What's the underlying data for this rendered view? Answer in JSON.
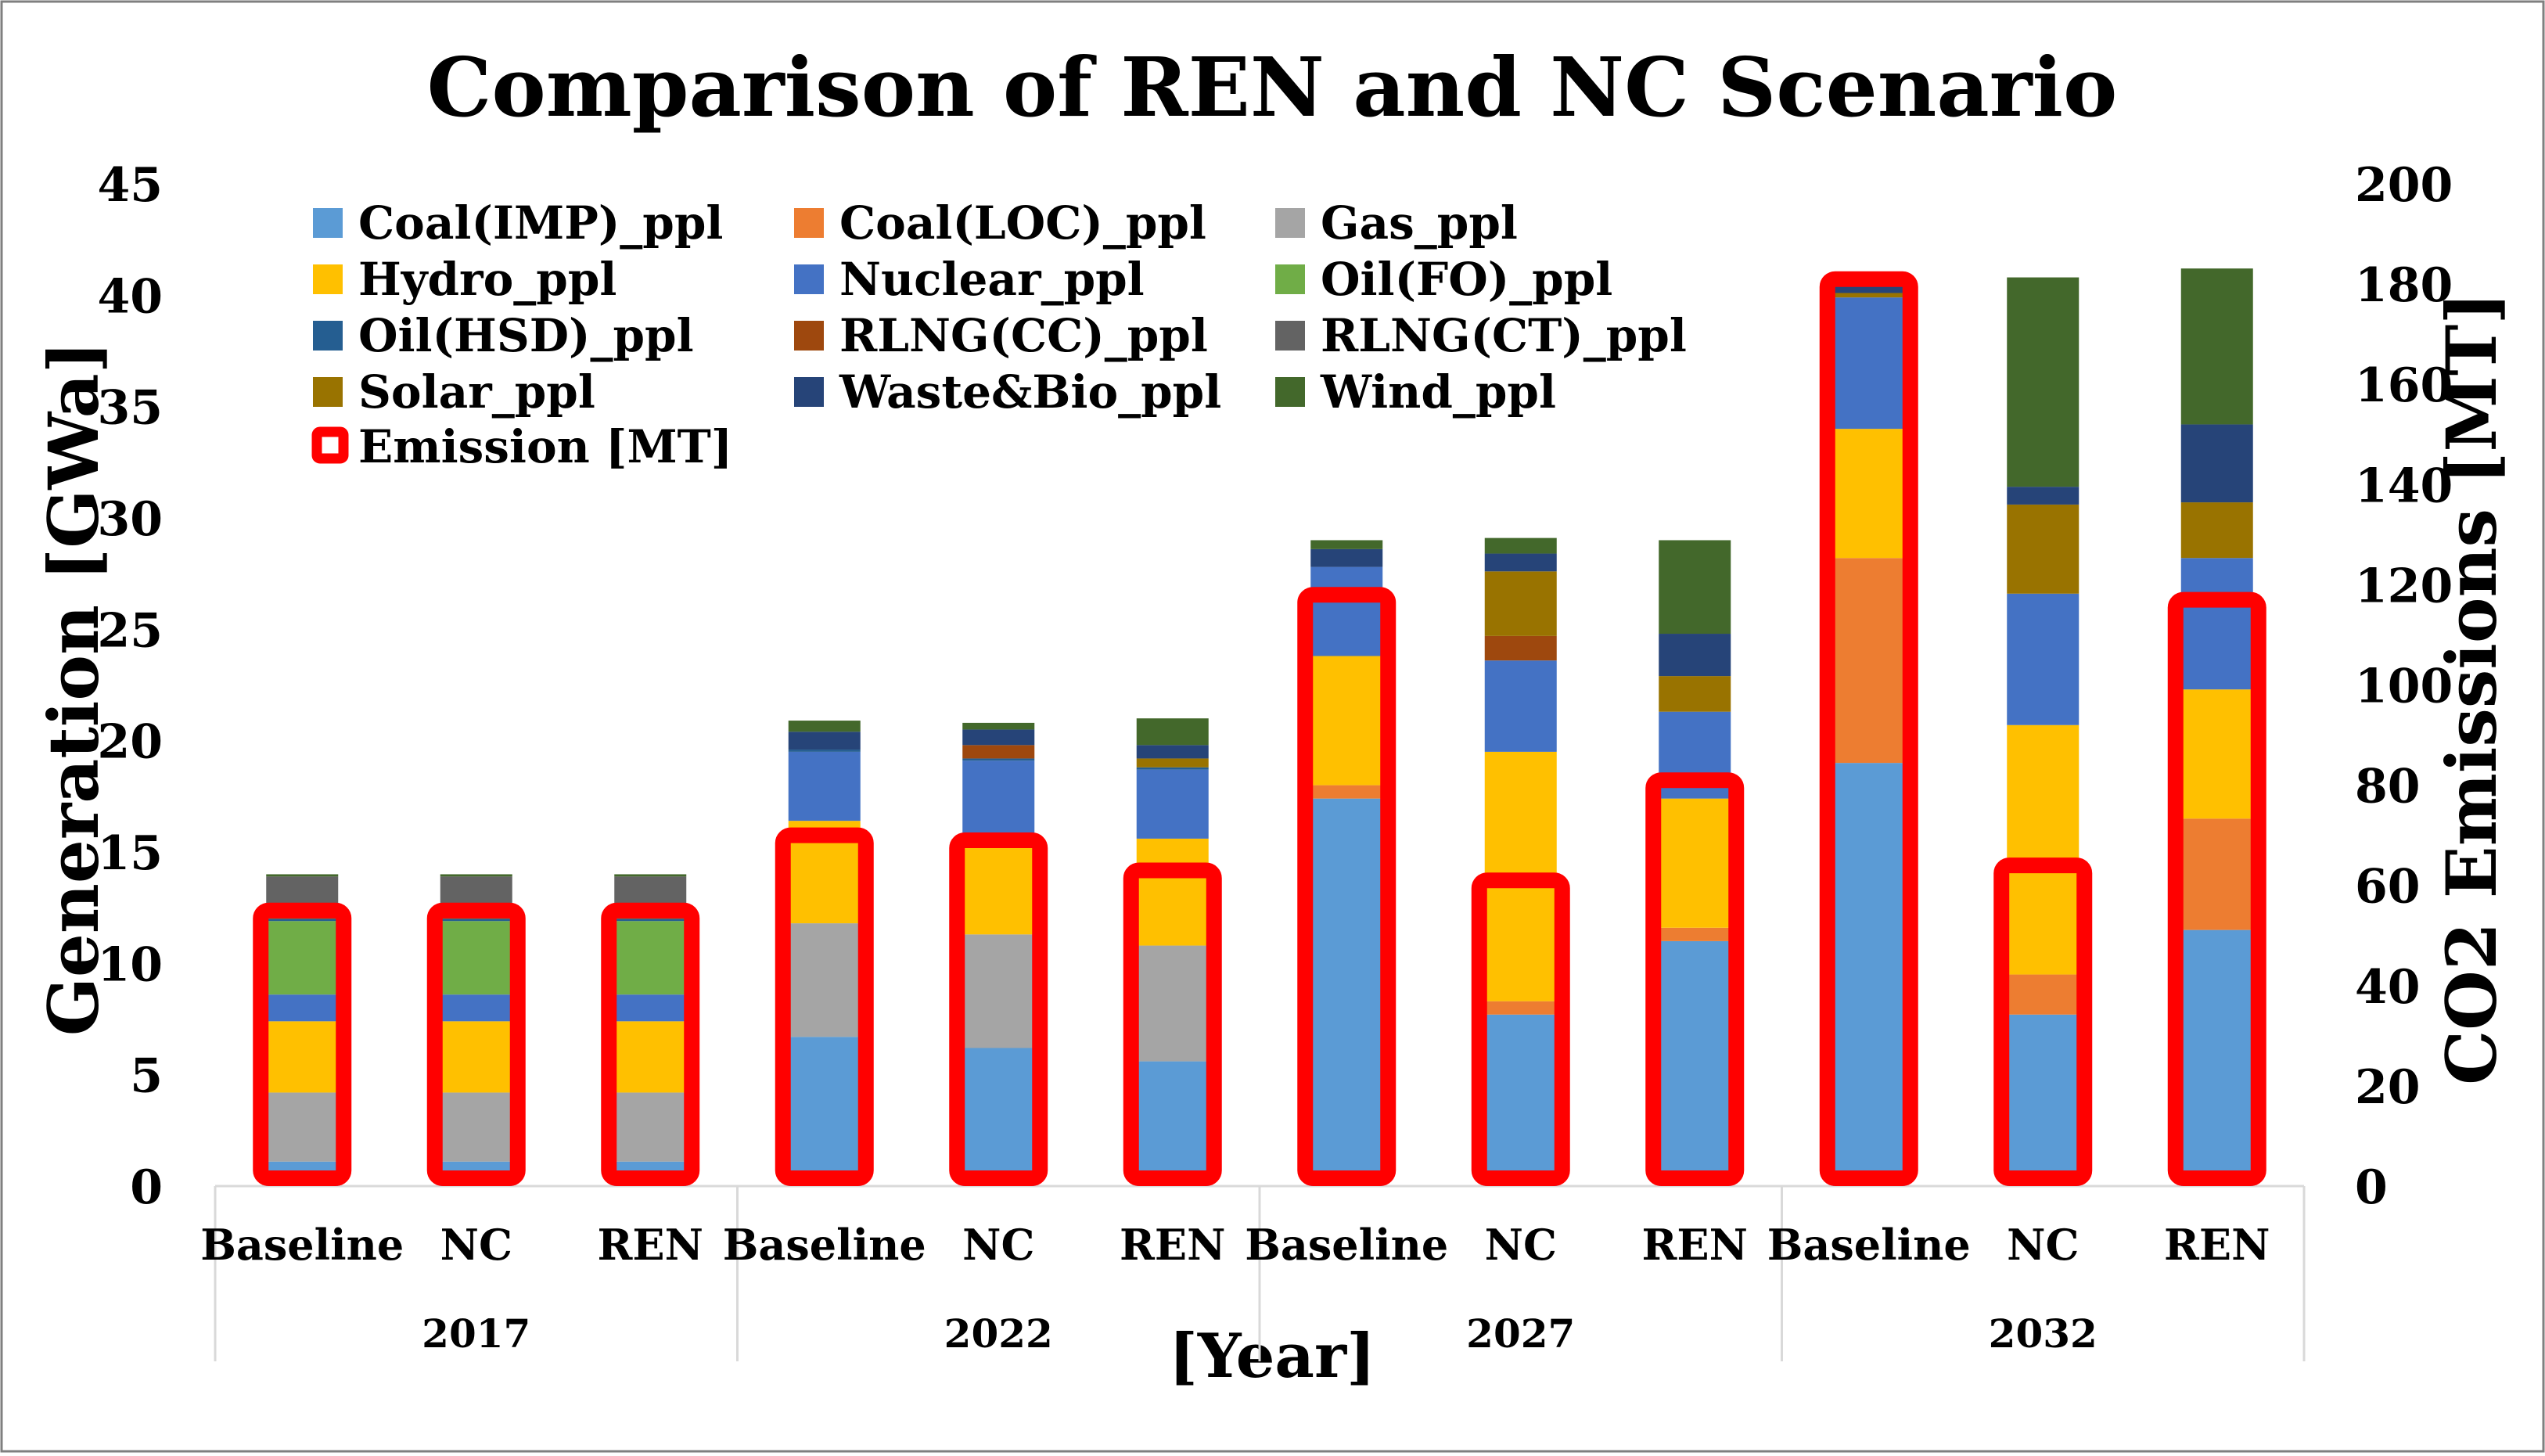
{
  "chart_data": {
    "type": "bar",
    "stacked": true,
    "title": "Comparison of REN and NC Scenario",
    "xlabel": "[Year]",
    "ylabel": "Generation [GWa]",
    "y2label": "CO2 Emissions [MT]",
    "ylim": [
      0,
      45
    ],
    "yticks": [
      0,
      5,
      10,
      15,
      20,
      25,
      30,
      35,
      40,
      45
    ],
    "y2lim": [
      0,
      200
    ],
    "y2ticks": [
      0,
      20,
      40,
      60,
      80,
      100,
      120,
      140,
      160,
      180,
      200
    ],
    "legend_position": "top-left",
    "groups": [
      {
        "label": "2017",
        "categories": [
          "Baseline",
          "NC",
          "REN"
        ]
      },
      {
        "label": "2022",
        "categories": [
          "Baseline",
          "NC",
          "REN"
        ]
      },
      {
        "label": "2027",
        "categories": [
          "Baseline",
          "NC",
          "REN"
        ]
      },
      {
        "label": "2032",
        "categories": [
          "Baseline",
          "NC",
          "REN"
        ]
      }
    ],
    "series": [
      {
        "name": "Coal(IMP)_ppl",
        "color": "#5B9BD5",
        "values": [
          1.1,
          1.1,
          1.1,
          6.7,
          6.2,
          5.6,
          17.4,
          7.7,
          11.0,
          19.0,
          7.7,
          11.5
        ]
      },
      {
        "name": "Coal(LOC)_ppl",
        "color": "#ED7D31",
        "values": [
          0.0,
          0.0,
          0.0,
          0.0,
          0.0,
          0.0,
          0.6,
          0.6,
          0.6,
          9.2,
          1.8,
          5.0
        ]
      },
      {
        "name": "Gas_ppl",
        "color": "#A5A5A5",
        "values": [
          3.1,
          3.1,
          3.1,
          5.1,
          5.1,
          5.2,
          0.0,
          0.0,
          0.0,
          0.0,
          0.0,
          0.0
        ]
      },
      {
        "name": "Hydro_ppl",
        "color": "#FFC000",
        "values": [
          3.2,
          3.2,
          3.2,
          4.6,
          4.0,
          4.8,
          5.8,
          11.2,
          5.8,
          5.8,
          11.2,
          5.8
        ]
      },
      {
        "name": "Nuclear_ppl",
        "color": "#4472C4",
        "values": [
          1.2,
          1.2,
          1.2,
          3.1,
          3.8,
          3.1,
          4.0,
          4.1,
          3.9,
          5.9,
          5.9,
          5.9
        ]
      },
      {
        "name": "Oil(FO)_ppl",
        "color": "#70AD47",
        "values": [
          3.3,
          3.3,
          3.3,
          0.0,
          0.0,
          0.0,
          0.0,
          0.0,
          0.0,
          0.0,
          0.0,
          0.0
        ]
      },
      {
        "name": "Oil(HSD)_ppl",
        "color": "#255E91",
        "values": [
          0.1,
          0.1,
          0.1,
          0.1,
          0.1,
          0.1,
          0.0,
          0.0,
          0.0,
          0.0,
          0.0,
          0.0
        ]
      },
      {
        "name": "RLNG(CC)_ppl",
        "color": "#9E480E",
        "values": [
          0.5,
          0.5,
          0.5,
          0.0,
          0.6,
          0.0,
          0.0,
          1.1,
          0.0,
          0.0,
          0.0,
          0.0
        ]
      },
      {
        "name": "RLNG(CT)_ppl",
        "color": "#636363",
        "values": [
          1.4,
          1.4,
          1.4,
          0.0,
          0.0,
          0.0,
          0.0,
          0.0,
          0.0,
          0.0,
          0.0,
          0.0
        ]
      },
      {
        "name": "Solar_ppl",
        "color": "#997300",
        "values": [
          0.0,
          0.0,
          0.0,
          0.0,
          0.0,
          0.4,
          0.0,
          2.9,
          1.6,
          0.2,
          4.0,
          2.5
        ]
      },
      {
        "name": "Waste&Bio_ppl",
        "color": "#264478",
        "values": [
          0.0,
          0.0,
          0.0,
          0.8,
          0.7,
          0.6,
          0.8,
          0.8,
          1.9,
          0.8,
          0.8,
          3.5
        ]
      },
      {
        "name": "Wind_ppl",
        "color": "#43682B",
        "values": [
          0.1,
          0.1,
          0.1,
          0.5,
          0.3,
          1.2,
          0.4,
          0.7,
          4.2,
          0.0,
          9.4,
          7.0
        ]
      }
    ],
    "emission_series": {
      "name": "Emission [MT]",
      "color": "#FF0000",
      "values": [
        55,
        55,
        55,
        70,
        69,
        63,
        118,
        61,
        81,
        181,
        64,
        117
      ]
    }
  }
}
